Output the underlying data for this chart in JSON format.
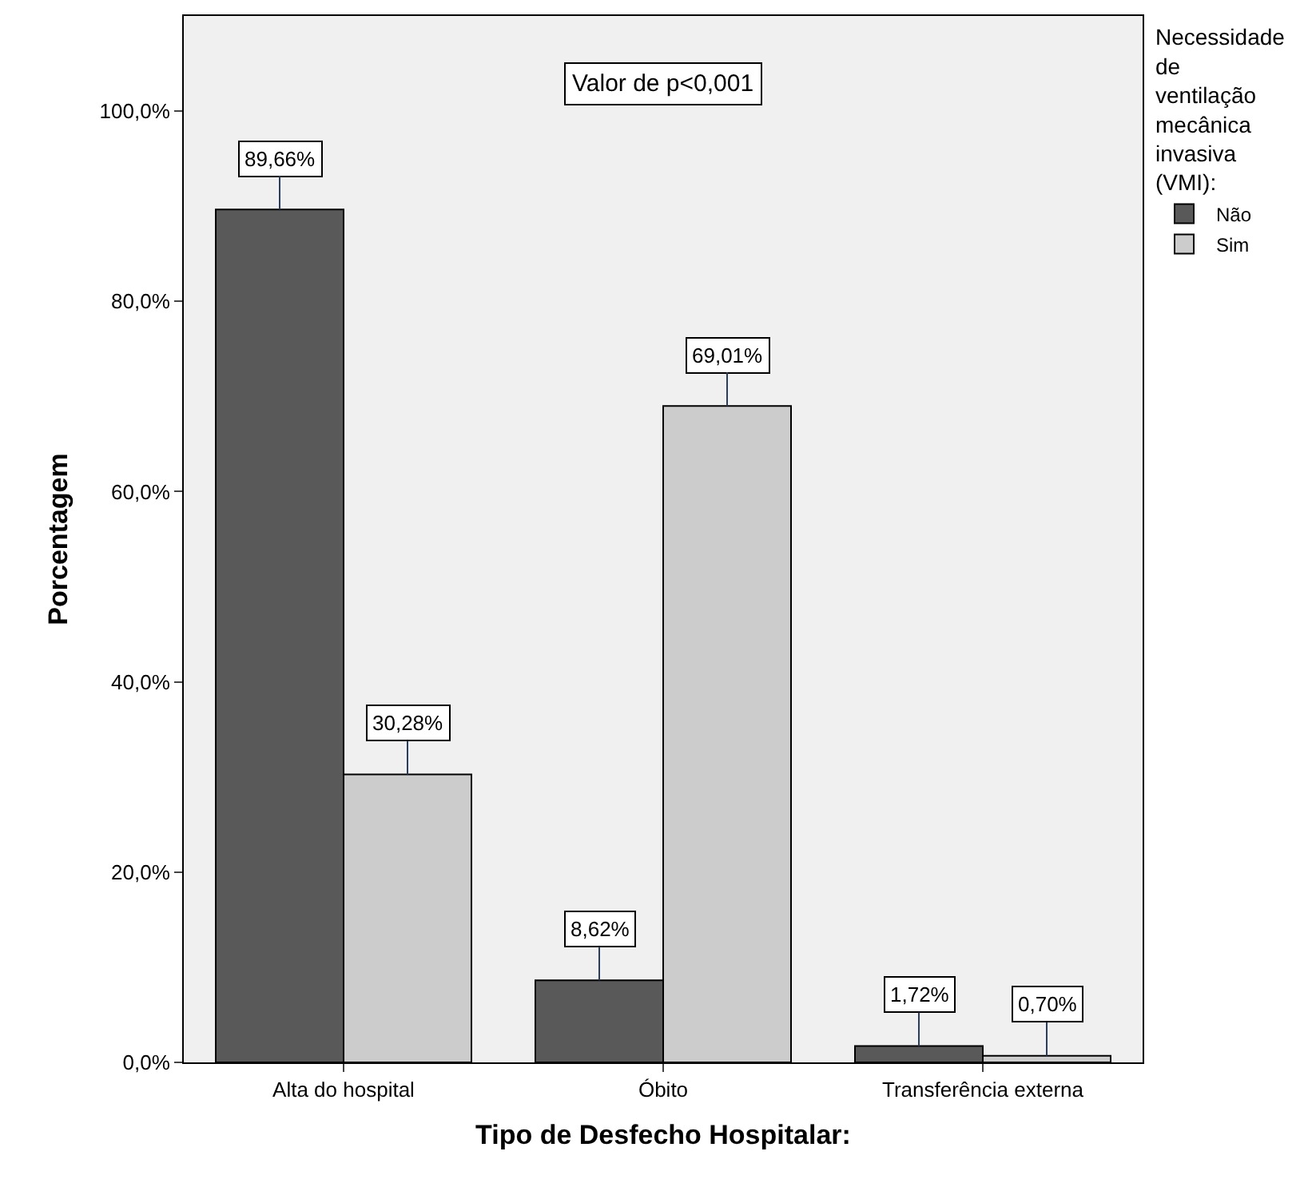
{
  "chart_data": {
    "type": "bar",
    "xlabel": "Tipo de Desfecho Hospitalar:",
    "ylabel": "Porcentagem",
    "legend_title": "Necessidade de ventilação mecânica invasiva (VMI):",
    "legend": "top right",
    "grid": false,
    "categories": [
      "Alta do hospital",
      "Óbito",
      "Transferência externa"
    ],
    "series": [
      {
        "name": "Não",
        "color": "#595959",
        "values": [
          89.66,
          8.62,
          1.72
        ],
        "value_labels": [
          "89,66%",
          "8,62%",
          "1,72%"
        ]
      },
      {
        "name": "Sim",
        "color": "#cccccc",
        "values": [
          30.28,
          69.01,
          0.7
        ],
        "value_labels": [
          "30,28%",
          "69,01%",
          "0,70%"
        ]
      }
    ],
    "ylim": [
      0,
      110
    ],
    "yticks": [
      {
        "value": 0,
        "label": "0,0%"
      },
      {
        "value": 20,
        "label": "20,0%"
      },
      {
        "value": 40,
        "label": "40,0%"
      },
      {
        "value": 60,
        "label": "60,0%"
      },
      {
        "value": 80,
        "label": "80,0%"
      },
      {
        "value": 100,
        "label": "100,0%"
      }
    ],
    "annotations": [
      "Valor de p<0,001"
    ]
  }
}
